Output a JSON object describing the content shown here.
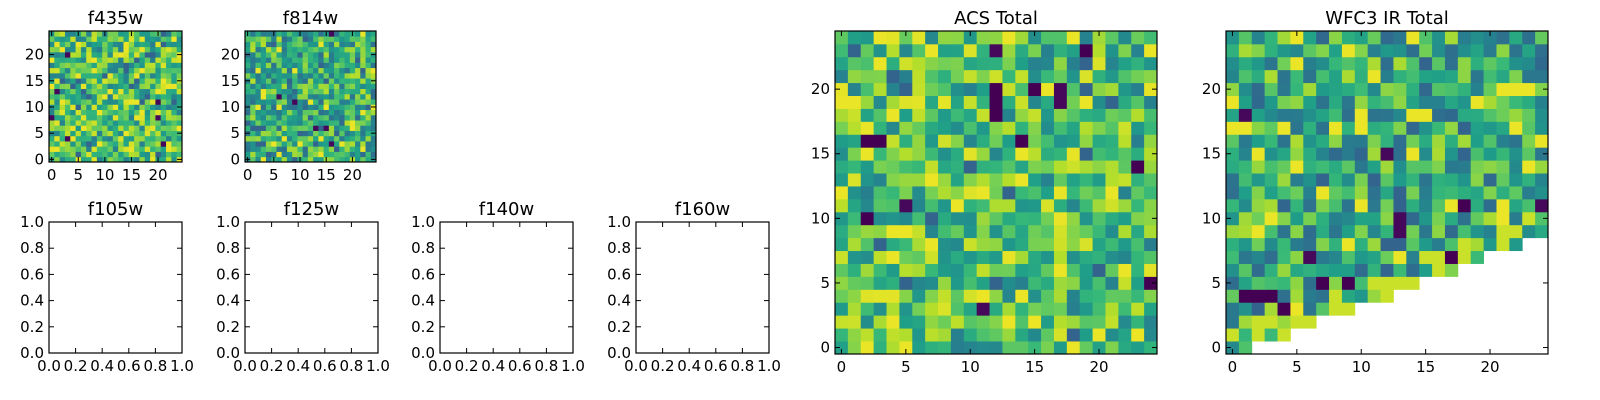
{
  "chart_data": [
    {
      "title": "f435w",
      "type": "heatmap",
      "colormap": "viridis",
      "grid_size": 25,
      "xlim": [
        -0.5,
        24.5
      ],
      "ylim": [
        -0.5,
        24.5
      ],
      "xticks": [
        0,
        5,
        10,
        15,
        20
      ],
      "yticks": [
        0,
        5,
        10,
        15,
        20
      ],
      "value_range": [
        0.0,
        1.0
      ],
      "mean_level": 0.7,
      "seed": 11,
      "notes": "25x25 image, mostly green-yellow noise with a few dark pixels"
    },
    {
      "title": "f814w",
      "type": "heatmap",
      "colormap": "viridis",
      "grid_size": 25,
      "xlim": [
        -0.5,
        24.5
      ],
      "ylim": [
        -0.5,
        24.5
      ],
      "xticks": [
        0,
        5,
        10,
        15,
        20
      ],
      "yticks": [
        0,
        5,
        10,
        15,
        20
      ],
      "value_range": [
        0.0,
        1.0
      ],
      "mean_level": 0.62,
      "seed": 29
    },
    {
      "title": "f105w",
      "type": "empty",
      "xlim": [
        0,
        1
      ],
      "ylim": [
        0,
        1
      ],
      "xticks": [
        "0.0",
        "0.2",
        "0.4",
        "0.6",
        "0.8",
        "1.0"
      ],
      "yticks": [
        "0.0",
        "0.2",
        "0.4",
        "0.6",
        "0.8",
        "1.0"
      ]
    },
    {
      "title": "f125w",
      "type": "empty",
      "xlim": [
        0,
        1
      ],
      "ylim": [
        0,
        1
      ],
      "xticks": [
        "0.0",
        "0.2",
        "0.4",
        "0.6",
        "0.8",
        "1.0"
      ],
      "yticks": [
        "0.0",
        "0.2",
        "0.4",
        "0.6",
        "0.8",
        "1.0"
      ]
    },
    {
      "title": "f140w",
      "type": "empty",
      "xlim": [
        0,
        1
      ],
      "ylim": [
        0,
        1
      ],
      "xticks": [
        "0.0",
        "0.2",
        "0.4",
        "0.6",
        "0.8",
        "1.0"
      ],
      "yticks": [
        "0.0",
        "0.2",
        "0.4",
        "0.6",
        "0.8",
        "1.0"
      ]
    },
    {
      "title": "f160w",
      "type": "empty",
      "xlim": [
        0,
        1
      ],
      "ylim": [
        0,
        1
      ],
      "xticks": [
        "0.0",
        "0.2",
        "0.4",
        "0.6",
        "0.8",
        "1.0"
      ],
      "yticks": [
        "0.0",
        "0.2",
        "0.4",
        "0.6",
        "0.8",
        "1.0"
      ]
    },
    {
      "title": "ACS Total",
      "type": "heatmap",
      "colormap": "viridis",
      "grid_size": 25,
      "xlim": [
        -0.5,
        24.5
      ],
      "ylim": [
        -0.5,
        24.5
      ],
      "xticks": [
        0,
        5,
        10,
        15,
        20
      ],
      "yticks": [
        0,
        5,
        10,
        15,
        20
      ],
      "value_range": [
        0.0,
        1.0
      ],
      "mean_level": 0.7,
      "seed": 53,
      "dark_pixels": [
        [
          19,
          23
        ],
        [
          12,
          19
        ],
        [
          12,
          20
        ],
        [
          15,
          20
        ],
        [
          2,
          16
        ],
        [
          3,
          16
        ],
        [
          14,
          16
        ],
        [
          23,
          14
        ],
        [
          2,
          10
        ],
        [
          24,
          5
        ],
        [
          12,
          18
        ]
      ]
    },
    {
      "title": "WFC3 IR Total",
      "type": "heatmap",
      "colormap": "viridis",
      "grid_size": 25,
      "xlim": [
        -0.5,
        24.5
      ],
      "ylim": [
        -0.5,
        24.5
      ],
      "xticks": [
        0,
        5,
        10,
        15,
        20
      ],
      "yticks": [
        0,
        5,
        10,
        15,
        20
      ],
      "value_range": [
        0.0,
        1.0
      ],
      "mean_level": 0.6,
      "seed": 71,
      "masked_region": "lower-right triangle (no data)",
      "dark_pixels": [
        [
          1,
          4
        ],
        [
          2,
          4
        ],
        [
          3,
          4
        ],
        [
          4,
          3
        ],
        [
          7,
          5
        ],
        [
          9,
          5
        ],
        [
          18,
          11
        ],
        [
          17,
          7
        ]
      ]
    }
  ]
}
